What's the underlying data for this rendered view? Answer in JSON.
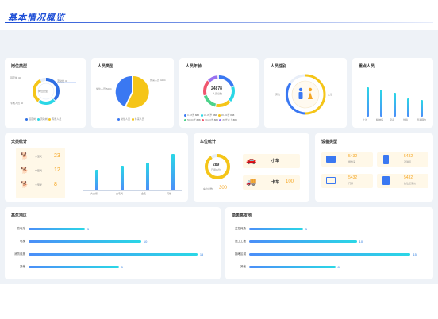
{
  "page_title": "基本情况概览",
  "post_type": {
    "title": "岗位类型",
    "center_label": "岗位类型",
    "labels": [
      {
        "text": "固定岗 40",
        "color": "#2f6fe4"
      },
      {
        "text": "流动岗 40",
        "color": "#2ad7e6"
      },
      {
        "text": "专属人员 40",
        "color": "#f5c518"
      }
    ],
    "legend": [
      "固定岗",
      "流动岗",
      "专属人员"
    ]
  },
  "staff_type": {
    "title": "人员类型",
    "labels": [
      "常住人员 5234",
      "外来人员 4234"
    ],
    "legend": [
      "常住人员",
      "外来人员"
    ],
    "chart_data": {
      "type": "pie",
      "categories": [
        "常住人员",
        "外来人员"
      ],
      "values": [
        5234,
        4234
      ],
      "colors": [
        "#3a78f2",
        "#f5c518"
      ]
    }
  },
  "staff_age": {
    "title": "人员年龄",
    "center_value": "24878",
    "center_label": "人员总数",
    "legend": [
      {
        "label": "0-18岁",
        "value": "888",
        "color": "#3a78f2"
      },
      {
        "label": "18-35岁",
        "value": "888",
        "color": "#2ad7e6"
      },
      {
        "label": "36-49岁",
        "value": "888",
        "color": "#f5c518"
      },
      {
        "label": "50-60岁",
        "value": "888",
        "color": "#4cd28a"
      },
      {
        "label": "60-80岁",
        "value": "888",
        "color": "#f0566e"
      },
      {
        "label": "80岁以上",
        "value": "888",
        "color": "#9a72f0"
      }
    ]
  },
  "staff_gender": {
    "title": "人员性别",
    "male": "男性",
    "female": "女性"
  },
  "key_staff": {
    "title": "重点人员",
    "chart_data": {
      "type": "bar",
      "categories": [
        "上访",
        "精神病",
        "吸毒",
        "外籍",
        "刑满释放"
      ],
      "values": [
        80,
        75,
        65,
        50,
        45
      ]
    }
  },
  "dog_stats": {
    "title": "犬类统计",
    "rows": [
      {
        "label": "小型犬",
        "value": "23"
      },
      {
        "label": "中型犬",
        "value": "12"
      },
      {
        "label": "大型犬",
        "value": "8"
      }
    ],
    "chart_data": {
      "type": "bar",
      "categories": [
        "大白熊",
        "金毛犬",
        "金毛",
        "其他"
      ],
      "values": [
        55,
        65,
        72,
        95
      ]
    }
  },
  "parking": {
    "title": "车位统计",
    "ring_value": "289",
    "ring_label": "已用车位",
    "total_label": "车位总数",
    "total_value": "300",
    "car_label": "小车",
    "car_value": "",
    "truck_label": "卡车",
    "truck_value": "100"
  },
  "devices": {
    "title": "设备类型",
    "items": [
      {
        "value": "5432",
        "label": "摄像头"
      },
      {
        "value": "5432",
        "label": "对讲机"
      },
      {
        "value": "5432",
        "label": "门禁"
      },
      {
        "value": "5432",
        "label": "执法记录仪"
      }
    ]
  },
  "high_risk_area": {
    "title": "高危地区",
    "chart_data": {
      "type": "bar",
      "orientation": "horizontal",
      "categories": [
        "变电站",
        "电梯",
        "消防设施",
        "其他"
      ],
      "values": [
        5,
        10,
        15,
        8
      ]
    }
  },
  "hazard_area": {
    "title": "隐患高发地",
    "chart_data": {
      "type": "bar",
      "orientation": "horizontal",
      "categories": [
        "监控死角",
        "施工工地",
        "拥堵区域",
        "其他"
      ],
      "values": [
        5,
        10,
        15,
        8
      ]
    }
  }
}
